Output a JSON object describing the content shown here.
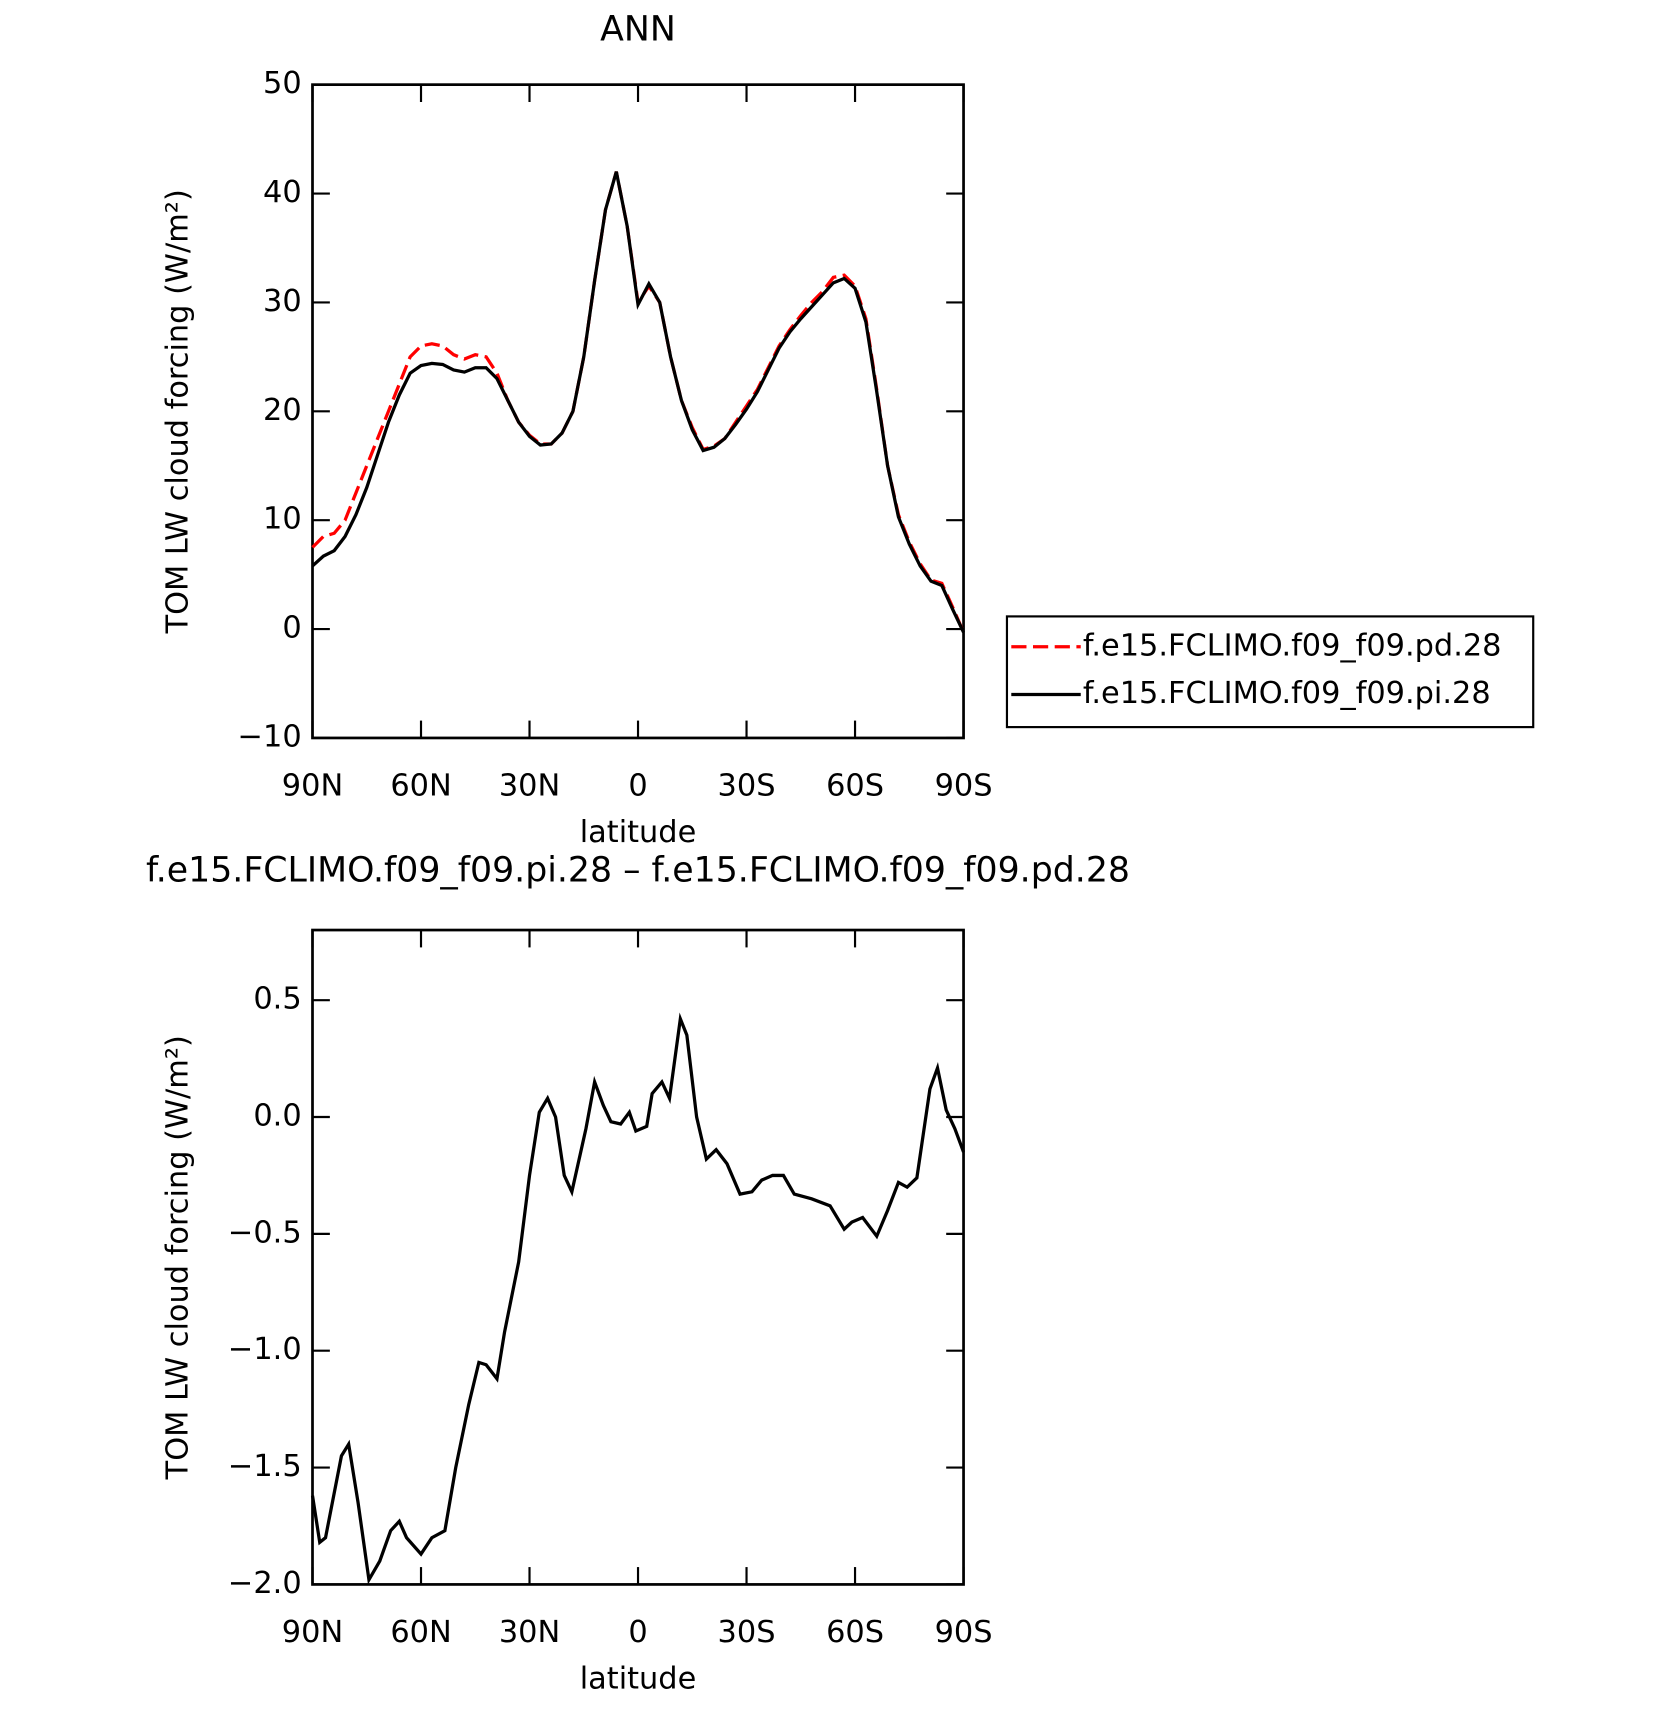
{
  "chart_data": [
    {
      "type": "line",
      "title": "ANN",
      "xlabel": "latitude",
      "ylabel": "TOM LW cloud forcing (W/m²)",
      "xlim": [
        90,
        -90
      ],
      "xticks": [
        {
          "value": 90,
          "label": "90N"
        },
        {
          "value": 60,
          "label": "60N"
        },
        {
          "value": 30,
          "label": "30N"
        },
        0,
        {
          "value": -30,
          "label": "30S"
        },
        {
          "value": -60,
          "label": "60S"
        },
        {
          "value": -90,
          "label": "90S"
        }
      ],
      "ylim": [
        -10,
        50
      ],
      "yticks": [
        {
          "value": -10,
          "label": "−10"
        },
        0,
        10,
        20,
        30,
        40,
        50
      ],
      "legend": "right",
      "x": [
        90,
        87,
        84,
        81,
        78,
        75,
        72,
        69,
        66,
        63,
        60,
        57,
        54,
        51,
        48,
        45,
        42,
        39,
        36,
        33,
        30,
        27,
        24,
        21,
        18,
        15,
        12,
        9,
        6,
        3,
        0,
        -3,
        -6,
        -9,
        -12,
        -15,
        -18,
        -21,
        -24,
        -27,
        -30,
        -33,
        -36,
        -39,
        -42,
        -45,
        -48,
        -51,
        -54,
        -57,
        -60,
        -63,
        -66,
        -69,
        -72,
        -75,
        -78,
        -81,
        -84,
        -87,
        -90
      ],
      "series": [
        {
          "name": "f.e15.FCLIMO.f09_f09.pd.28",
          "color": "#ff0000",
          "style": "dashed",
          "values": [
            7.5,
            8.5,
            8.8,
            10,
            12.5,
            15,
            17.5,
            20,
            22.5,
            25,
            26,
            26.2,
            26,
            25.2,
            24.8,
            25.2,
            25,
            23.5,
            21,
            19,
            17.8,
            17,
            17,
            18,
            20,
            25,
            32,
            38.5,
            42,
            37,
            30,
            31.5,
            30,
            25,
            21,
            18.5,
            16.5,
            16.8,
            17.5,
            19,
            20.5,
            22,
            24,
            26,
            27.5,
            28.8,
            30,
            31,
            32.3,
            32.5,
            31.5,
            28.5,
            22,
            15,
            10.5,
            8,
            6,
            4.5,
            4.2,
            2,
            -0.3
          ]
        },
        {
          "name": "f.e15.FCLIMO.f09_f09.pi.28",
          "color": "#000000",
          "style": "solid",
          "values": [
            5.8,
            6.7,
            7.2,
            8.5,
            10.5,
            13,
            16,
            19,
            21.5,
            23.5,
            24.2,
            24.4,
            24.3,
            23.8,
            23.6,
            24,
            24,
            23,
            21,
            19,
            17.7,
            16.9,
            17,
            18,
            20,
            25,
            32,
            38.5,
            42,
            37,
            29.8,
            31.7,
            30,
            25,
            21,
            18.3,
            16.4,
            16.7,
            17.5,
            18.8,
            20.2,
            21.8,
            23.8,
            25.8,
            27.3,
            28.5,
            29.6,
            30.7,
            31.8,
            32.2,
            31.3,
            28.2,
            21.8,
            15,
            10.3,
            7.8,
            5.8,
            4.4,
            4,
            1.8,
            -0.3
          ]
        }
      ]
    },
    {
      "type": "line",
      "title": "f.e15.FCLIMO.f09_f09.pi.28 – f.e15.FCLIMO.f09_f09.pd.28",
      "xlabel": "latitude",
      "ylabel": "TOM LW cloud forcing (W/m²)",
      "xlim": [
        90,
        -90
      ],
      "xticks": [
        {
          "value": 90,
          "label": "90N"
        },
        {
          "value": 60,
          "label": "60N"
        },
        {
          "value": 30,
          "label": "30N"
        },
        0,
        {
          "value": -30,
          "label": "30S"
        },
        {
          "value": -60,
          "label": "60S"
        },
        {
          "value": -90,
          "label": "90S"
        }
      ],
      "ylim": [
        -2,
        0.8
      ],
      "yticks": [
        {
          "value": -2,
          "label": "−2.0"
        },
        {
          "value": -1.5,
          "label": "−1.5"
        },
        {
          "value": -1,
          "label": "−1.0"
        },
        {
          "value": -0.5,
          "label": "−0.5"
        },
        {
          "value": 0,
          "label": "0.0"
        },
        0.5
      ],
      "x": [
        90,
        88,
        86.4,
        82,
        80,
        77.4,
        74.4,
        71.4,
        68.4,
        66,
        64,
        60,
        57,
        53.4,
        50.4,
        46.8,
        44,
        42,
        39,
        36.9,
        33,
        30,
        27.3,
        25,
        22.8,
        20.4,
        18.3,
        14.4,
        12,
        9.6,
        7.5,
        4.8,
        2.4,
        0.6,
        -2.4,
        -3.9,
        -6.6,
        -8.7,
        -11.7,
        -13.5,
        -16.2,
        -18.9,
        -21.6,
        -24.6,
        -28.2,
        -31.5,
        -34.2,
        -37.2,
        -40.2,
        -43.2,
        -48,
        -53.1,
        -57,
        -59.1,
        -62.1,
        -66,
        -69,
        -72,
        -74.4,
        -77.1,
        -80.7,
        -82.8,
        -85.2,
        -87.6,
        -90
      ],
      "series": [
        {
          "color": "#000000",
          "style": "solid",
          "values": [
            -1.62,
            -1.82,
            -1.8,
            -1.45,
            -1.4,
            -1.65,
            -1.98,
            -1.9,
            -1.77,
            -1.73,
            -1.8,
            -1.87,
            -1.8,
            -1.77,
            -1.5,
            -1.23,
            -1.05,
            -1.06,
            -1.12,
            -0.92,
            -0.62,
            -0.25,
            0.02,
            0.08,
            0,
            -0.25,
            -0.32,
            -0.05,
            0.15,
            0.05,
            -0.02,
            -0.03,
            0.02,
            -0.06,
            -0.04,
            0.1,
            0.15,
            0.08,
            0.42,
            0.35,
            0,
            -0.18,
            -0.14,
            -0.2,
            -0.33,
            -0.32,
            -0.27,
            -0.25,
            -0.25,
            -0.33,
            -0.35,
            -0.38,
            -0.48,
            -0.45,
            -0.43,
            -0.51,
            -0.4,
            -0.28,
            -0.3,
            -0.26,
            0.12,
            0.21,
            0.03,
            -0.05,
            -0.15
          ]
        }
      ]
    }
  ]
}
